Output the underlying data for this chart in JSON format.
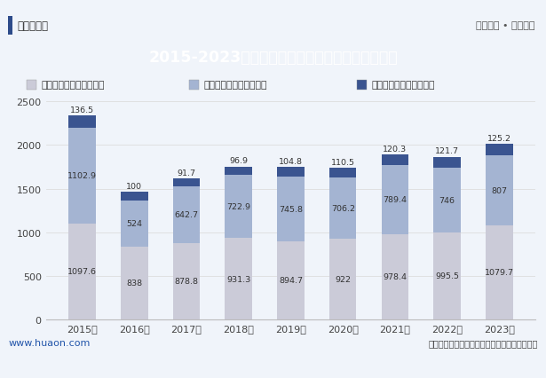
{
  "title": "2015-2023年鞍山市第一、第二及第三产业增加值",
  "years": [
    "2015年",
    "2016年",
    "2017年",
    "2018年",
    "2019年",
    "2020年",
    "2021年",
    "2022年",
    "2023年"
  ],
  "sector1": [
    1097.6,
    838.0,
    878.8,
    931.3,
    894.7,
    922.0,
    978.4,
    995.5,
    1079.7
  ],
  "sector2": [
    1102.9,
    524.0,
    642.7,
    722.9,
    745.8,
    706.2,
    789.4,
    746.0,
    807.0
  ],
  "sector3": [
    136.5,
    100.0,
    91.7,
    96.9,
    104.8,
    110.5,
    120.3,
    121.7,
    125.2
  ],
  "color1": "#cbcbd8",
  "color2": "#a4b4d2",
  "color3": "#3a5490",
  "legend_labels": [
    "第三产业增加值（亿元）",
    "第二产业增加值（亿元）",
    "第一产业增加值（亿元）"
  ],
  "legend_colors": [
    "#cbcbd8",
    "#a4b4d2",
    "#3a5490"
  ],
  "ylim": [
    0,
    2500
  ],
  "yticks": [
    0,
    500,
    1000,
    1500,
    2000,
    2500
  ],
  "title_bg_color": "#2d4b8a",
  "title_text_color": "#ffffff",
  "bg_color": "#f0f4fa",
  "footer_text_left": "www.huaon.com",
  "footer_text_right": "数据来源：辽宁省统计局；华经产业研究院整理",
  "top_left_text": "华经情报网",
  "top_right_text": "专业严谨 • 客观科学",
  "footer_line_color": "#2d4b8a",
  "label_fontsize": 6.8,
  "axis_fontsize": 8.0
}
